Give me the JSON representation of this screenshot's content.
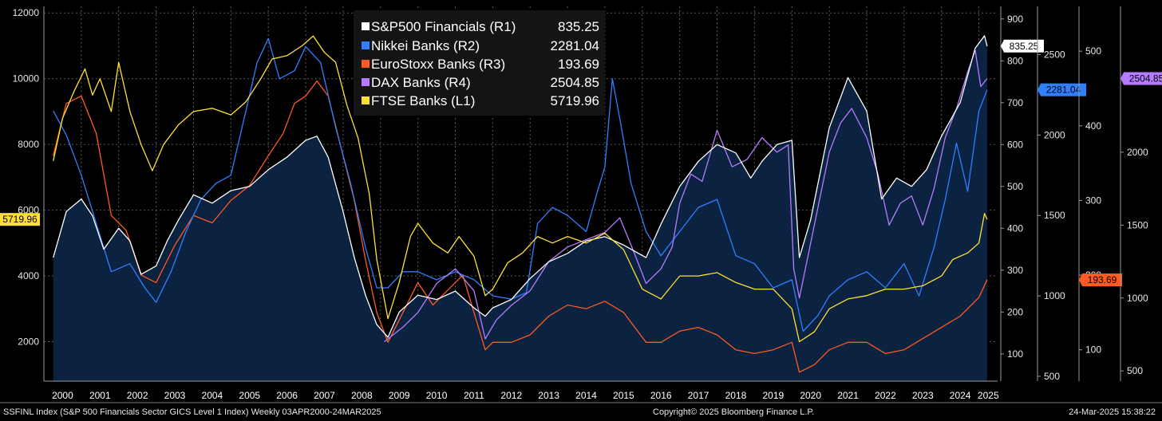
{
  "legend": [
    {
      "name": "S&P500 Financials (R1)",
      "value": "835.25",
      "color": "#ffffff"
    },
    {
      "name": "Nikkei Banks (R2)",
      "value": "2281.04",
      "color": "#2f7fff"
    },
    {
      "name": "EuroStoxx Banks (R3)",
      "value": "193.69",
      "color": "#ff5a1f"
    },
    {
      "name": "DAX Banks (R4)",
      "value": "2504.85",
      "color": "#b57cff"
    },
    {
      "name": "FTSE Banks (L1)",
      "value": "5719.96",
      "color": "#ffe033"
    }
  ],
  "footer": {
    "left": "SSFINL Index (S&P 500 Financials Sector GICS Level 1 Index)  Weekly 03APR2000-24MAR2025",
    "center": "Copyright© 2025 Bloomberg Finance L.P.",
    "right": "24-Mar-2025 15:38:22"
  },
  "chart_data": {
    "type": "line",
    "x_label_years": [
      "2000",
      "2001",
      "2002",
      "2003",
      "2004",
      "2005",
      "2006",
      "2007",
      "2008",
      "2009",
      "2010",
      "2011",
      "2012",
      "2013",
      "2014",
      "2015",
      "2016",
      "2017",
      "2018",
      "2019",
      "2020",
      "2021",
      "2022",
      "2023",
      "2024",
      "2025"
    ],
    "axes": {
      "L1": {
        "ticks": [
          2000,
          4000,
          6000,
          8000,
          10000,
          12000
        ],
        "range": [
          800,
          12200
        ],
        "last_label": "5719.96",
        "last_color": "#ffe033"
      },
      "R1": {
        "ticks": [
          100,
          200,
          300,
          400,
          500,
          600,
          700,
          800,
          900
        ],
        "range": [
          35,
          930
        ],
        "last_label": "835.25",
        "last_color": "#ffffff"
      },
      "R2": {
        "ticks": [
          500,
          1000,
          1500,
          2000,
          2500
        ],
        "range": [
          470,
          2800
        ],
        "last_label": "2281.04",
        "last_color": "#2f7fff"
      },
      "R3": {
        "ticks": [
          100,
          200,
          300,
          400,
          500
        ],
        "range": [
          58,
          560
        ],
        "last_label": "193.69",
        "last_color": "#ff5a1f"
      },
      "R4": {
        "ticks": [
          500,
          1000,
          1500,
          2000
        ],
        "range": [
          430,
          3000
        ],
        "last_label": "2504.85",
        "last_color": "#b57cff"
      }
    },
    "grid": true,
    "series": [
      {
        "name": "S&P500 Financials (R1)",
        "axis": "R1",
        "color": "#ffffff",
        "area_fill": "#0b2240",
        "x": [
          2000.25,
          2000.6,
          2001.0,
          2001.3,
          2001.6,
          2002.0,
          2002.3,
          2002.6,
          2003.0,
          2003.3,
          2003.6,
          2004.0,
          2004.5,
          2005.0,
          2005.5,
          2006.0,
          2006.5,
          2007.0,
          2007.3,
          2007.6,
          2008.0,
          2008.3,
          2008.6,
          2008.9,
          2009.2,
          2009.5,
          2010.0,
          2010.5,
          2011.0,
          2011.5,
          2011.8,
          2012.0,
          2012.5,
          2013.0,
          2013.5,
          2014.0,
          2014.5,
          2015.0,
          2015.5,
          2016.1,
          2016.5,
          2017.0,
          2017.5,
          2018.0,
          2018.5,
          2018.9,
          2019.2,
          2019.6,
          2020.0,
          2020.2,
          2020.5,
          2021.0,
          2021.5,
          2022.0,
          2022.4,
          2022.8,
          2023.2,
          2023.6,
          2024.0,
          2024.5,
          2024.9,
          2025.15,
          2025.22
        ],
        "y": [
          330,
          440,
          470,
          430,
          350,
          400,
          370,
          290,
          310,
          370,
          420,
          480,
          460,
          490,
          500,
          540,
          570,
          610,
          620,
          570,
          440,
          330,
          240,
          170,
          140,
          200,
          240,
          230,
          250,
          210,
          190,
          210,
          230,
          280,
          320,
          340,
          370,
          380,
          360,
          330,
          410,
          500,
          560,
          600,
          580,
          520,
          560,
          600,
          610,
          330,
          420,
          640,
          760,
          680,
          470,
          520,
          500,
          540,
          620,
          700,
          830,
          860,
          835
        ]
      },
      {
        "name": "Nikkei Banks (R2)",
        "axis": "R2",
        "color": "#2f7fff",
        "x": [
          2000.25,
          2000.6,
          2001.0,
          2001.4,
          2001.8,
          2002.3,
          2002.7,
          2003.0,
          2003.4,
          2003.8,
          2004.2,
          2004.6,
          2005.0,
          2005.4,
          2005.7,
          2006.0,
          2006.3,
          2006.7,
          2007.0,
          2007.4,
          2007.8,
          2008.2,
          2008.6,
          2008.9,
          2009.2,
          2009.6,
          2010.0,
          2010.5,
          2011.0,
          2011.5,
          2012.0,
          2012.5,
          2012.9,
          2013.2,
          2013.6,
          2014.0,
          2014.5,
          2014.8,
          2015.0,
          2015.2,
          2015.4,
          2015.7,
          2016.1,
          2016.5,
          2017.0,
          2017.5,
          2018.0,
          2018.5,
          2019.0,
          2019.5,
          2020.0,
          2020.3,
          2020.7,
          2021.0,
          2021.5,
          2022.0,
          2022.5,
          2023.0,
          2023.4,
          2023.8,
          2024.1,
          2024.4,
          2024.7,
          2025.0,
          2025.22
        ],
        "y": [
          2150,
          2000,
          1750,
          1450,
          1150,
          1200,
          1050,
          960,
          1150,
          1400,
          1600,
          1700,
          1750,
          2150,
          2450,
          2600,
          2350,
          2400,
          2550,
          2450,
          2050,
          1700,
          1300,
          1050,
          1050,
          1150,
          1150,
          1100,
          1150,
          1100,
          1000,
          980,
          1020,
          1450,
          1550,
          1500,
          1400,
          1650,
          1800,
          2350,
          2100,
          1700,
          1400,
          1250,
          1400,
          1550,
          1600,
          1250,
          1200,
          1050,
          1100,
          780,
          880,
          1000,
          1100,
          1150,
          1050,
          1200,
          1000,
          1300,
          1600,
          1950,
          1650,
          2150,
          2281
        ]
      },
      {
        "name": "EuroStoxx Banks (R3)",
        "axis": "R3",
        "color": "#ff5a1f",
        "x": [
          2000.25,
          2000.6,
          2001.0,
          2001.4,
          2001.8,
          2002.2,
          2002.6,
          2003.0,
          2003.5,
          2004.0,
          2004.5,
          2005.0,
          2005.5,
          2006.0,
          2006.4,
          2006.7,
          2007.0,
          2007.3,
          2007.6,
          2008.0,
          2008.3,
          2008.6,
          2008.9,
          2009.2,
          2009.6,
          2010.0,
          2010.4,
          2010.8,
          2011.2,
          2011.5,
          2011.8,
          2012.0,
          2012.5,
          2013.0,
          2013.5,
          2014.0,
          2014.5,
          2015.0,
          2015.5,
          2016.1,
          2016.5,
          2017.0,
          2017.5,
          2018.0,
          2018.5,
          2019.0,
          2019.5,
          2020.0,
          2020.2,
          2020.6,
          2021.0,
          2021.5,
          2022.0,
          2022.5,
          2023.0,
          2023.5,
          2024.0,
          2024.5,
          2025.0,
          2025.22
        ],
        "y": [
          360,
          430,
          440,
          390,
          280,
          260,
          200,
          190,
          240,
          280,
          270,
          300,
          320,
          360,
          390,
          430,
          440,
          460,
          440,
          360,
          300,
          220,
          150,
          110,
          150,
          190,
          160,
          180,
          200,
          150,
          100,
          110,
          110,
          120,
          145,
          160,
          155,
          165,
          150,
          110,
          110,
          125,
          130,
          120,
          100,
          95,
          100,
          110,
          70,
          80,
          100,
          110,
          110,
          95,
          100,
          115,
          130,
          145,
          170,
          194
        ]
      },
      {
        "name": "DAX Banks (R4)",
        "axis": "R4",
        "color": "#b57cff",
        "x": [
          2009.1,
          2009.6,
          2010.0,
          2010.5,
          2011.0,
          2011.5,
          2011.8,
          2012.1,
          2012.5,
          2013.0,
          2013.5,
          2014.0,
          2014.5,
          2015.0,
          2015.4,
          2015.8,
          2016.1,
          2016.5,
          2016.8,
          2017.0,
          2017.3,
          2017.6,
          2018.0,
          2018.4,
          2018.8,
          2019.2,
          2019.6,
          2019.9,
          2020.05,
          2020.2,
          2020.6,
          2021.0,
          2021.3,
          2021.6,
          2022.0,
          2022.3,
          2022.6,
          2022.9,
          2023.2,
          2023.5,
          2023.8,
          2024.1,
          2024.4,
          2024.7,
          2024.9,
          2025.05,
          2025.22
        ],
        "y": [
          700,
          800,
          900,
          1100,
          1200,
          1050,
          720,
          850,
          950,
          1050,
          1250,
          1350,
          1400,
          1450,
          1550,
          1300,
          1100,
          1200,
          1350,
          1650,
          1850,
          1800,
          2150,
          1900,
          1950,
          2100,
          2000,
          2050,
          1200,
          1000,
          1500,
          2000,
          2200,
          2300,
          2100,
          1850,
          1500,
          1650,
          1700,
          1500,
          1750,
          2100,
          2300,
          2550,
          2700,
          2450,
          2505
        ]
      },
      {
        "name": "FTSE Banks (L1)",
        "axis": "L1",
        "color": "#ffe033",
        "x": [
          2000.25,
          2000.5,
          2000.8,
          2001.1,
          2001.3,
          2001.5,
          2001.8,
          2002.0,
          2002.3,
          2002.6,
          2002.9,
          2003.2,
          2003.6,
          2004.0,
          2004.5,
          2005.0,
          2005.4,
          2005.8,
          2006.1,
          2006.5,
          2006.9,
          2007.2,
          2007.5,
          2007.8,
          2008.1,
          2008.4,
          2008.7,
          2008.9,
          2009.2,
          2009.5,
          2009.8,
          2010.0,
          2010.4,
          2010.8,
          2011.1,
          2011.5,
          2011.8,
          2012.0,
          2012.4,
          2012.8,
          2013.2,
          2013.6,
          2014.0,
          2014.5,
          2015.0,
          2015.5,
          2016.0,
          2016.5,
          2017.0,
          2017.5,
          2018.0,
          2018.5,
          2019.0,
          2019.5,
          2020.0,
          2020.2,
          2020.6,
          2021.0,
          2021.5,
          2022.0,
          2022.5,
          2023.0,
          2023.5,
          2024.0,
          2024.3,
          2024.7,
          2025.0,
          2025.15,
          2025.22
        ],
        "y": [
          7500,
          8800,
          9600,
          10300,
          9500,
          10000,
          9000,
          10500,
          9000,
          8000,
          7200,
          8000,
          8600,
          9000,
          9100,
          8900,
          9300,
          10000,
          10600,
          10700,
          11000,
          11300,
          10800,
          10500,
          9200,
          8200,
          6500,
          4500,
          2700,
          3800,
          5200,
          5600,
          5000,
          4700,
          5200,
          4600,
          3400,
          3600,
          4400,
          4700,
          5200,
          5000,
          5200,
          5000,
          5300,
          4800,
          3600,
          3300,
          4000,
          4000,
          4100,
          3800,
          3600,
          3600,
          3000,
          2000,
          2300,
          3000,
          3300,
          3400,
          3600,
          3600,
          3700,
          4000,
          4500,
          4700,
          5000,
          5900,
          5720
        ]
      }
    ]
  }
}
